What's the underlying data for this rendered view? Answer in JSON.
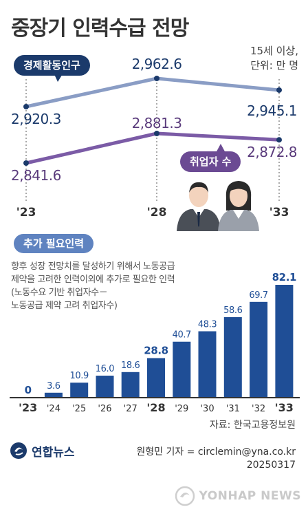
{
  "title": "중장기 인력수급 전망",
  "note": "15세 이상,\n단위: 만 명",
  "line_chart_labels": {
    "labor_force": "경제활동인구",
    "employed": "취업자 수"
  },
  "bar_section_label": "추가 필요인력",
  "bar_description": "향후 성장 전망치를 달성하기 위해서 노동공급\n제약을 고려한 인력이외에 추가로 필요한 인력\n(노동수요 기반 취업자수－\n 노동공급 제약 고려 취업자수)",
  "source": "자료: 한국고용정보원",
  "logo_text": "연합뉴스",
  "reporter": "원형민 기자 = circlemin@yna.co.kr\n20250317",
  "watermark": "YONHAP NEWS",
  "colors": {
    "navy": "#1b3a6b",
    "labor_line": "#8a9dc5",
    "employed_line": "#7b5ba6",
    "employed_text": "#5a3b7c",
    "pill_light": "#5f83c0",
    "bar": "#1f4e96",
    "axis": "#333333"
  },
  "chart_data": [
    {
      "type": "line",
      "x": [
        "'23",
        "'28",
        "'33"
      ],
      "series": [
        {
          "name": "경제활동인구",
          "values": [
            2920.3,
            2962.6,
            2945.1
          ]
        },
        {
          "name": "취업자 수",
          "values": [
            2841.6,
            2881.3,
            2872.8
          ]
        }
      ],
      "value_labels": {
        "경제활동인구": [
          "2,920.3",
          "2,962.6",
          "2,945.1"
        ],
        "취업자 수": [
          "2,841.6",
          "2,881.3",
          "2,872.8"
        ]
      },
      "ylabel": "단위: 만 명"
    },
    {
      "type": "bar",
      "title": "추가 필요인력",
      "categories": [
        "'23",
        "'24",
        "'25",
        "'26",
        "'27",
        "'28",
        "'29",
        "'30",
        "'31",
        "'32",
        "'33"
      ],
      "values": [
        0,
        3.6,
        10.9,
        16.0,
        18.6,
        28.8,
        40.7,
        48.3,
        58.6,
        69.7,
        82.1
      ],
      "value_labels": [
        "0",
        "3.6",
        "10.9",
        "16.0",
        "18.6",
        "28.8",
        "40.7",
        "48.3",
        "58.6",
        "69.7",
        "82.1"
      ],
      "highlight_categories": [
        "'23",
        "'28",
        "'33"
      ]
    }
  ]
}
